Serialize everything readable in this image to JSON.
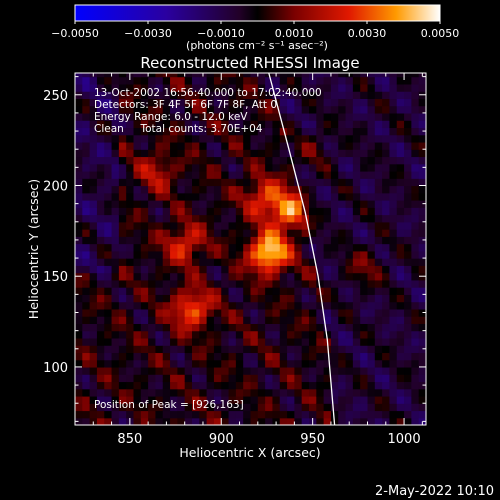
{
  "chart_data": {
    "type": "heatmap",
    "title": "Reconstructed RHESSI Image",
    "xlabel": "Heliocentric X (arcsec)",
    "ylabel": "Heliocentric Y (arcsec)",
    "xlim": [
      820,
      1012
    ],
    "ylim": [
      68,
      262
    ],
    "x_ticks": [
      850,
      900,
      950,
      1000
    ],
    "y_ticks": [
      100,
      150,
      200,
      250
    ],
    "colorbar": {
      "range": [
        -0.005,
        0.005
      ],
      "tick_values": [
        -0.005,
        -0.003,
        -0.001,
        0.001,
        0.003,
        0.005
      ],
      "tick_labels": [
        "−0.0050",
        "−0.0030",
        "−0.0010",
        "0.0010",
        "0.0030",
        "0.0050"
      ],
      "unit": "(photons cm⁻² s⁻¹ asec⁻²)"
    },
    "annotations": [
      "13-Oct-2002 16:56:40.000 to 17:02:40.000",
      "Detectors: 3F 4F 5F 6F 7F 8F, Att 0",
      "Energy Range: 6.0 - 12.0 keV",
      "Clean     Total counts: 3.70E+04"
    ],
    "peak_label": "Position of Peak = [926,163]",
    "sources": [
      {
        "x": 926,
        "y": 163,
        "value": 0.005
      },
      {
        "x": 937,
        "y": 186,
        "value": 0.0036
      },
      {
        "x": 923,
        "y": 194,
        "value": 0.0026
      },
      {
        "x": 884,
        "y": 132,
        "value": 0.0033
      },
      {
        "x": 880,
        "y": 168,
        "value": 0.0026
      },
      {
        "x": 865,
        "y": 208,
        "value": 0.0018
      },
      {
        "x": 978,
        "y": 155,
        "value": 0.0016
      },
      {
        "x": 950,
        "y": 220,
        "value": 0.0012
      }
    ],
    "limb_x_at_y": [
      [
        926,
        262
      ],
      [
        937,
        220
      ],
      [
        946,
        185
      ],
      [
        953,
        150
      ],
      [
        958,
        115
      ],
      [
        962,
        68
      ]
    ]
  },
  "footer": {
    "timestamp": "2-May-2022 10:10"
  }
}
